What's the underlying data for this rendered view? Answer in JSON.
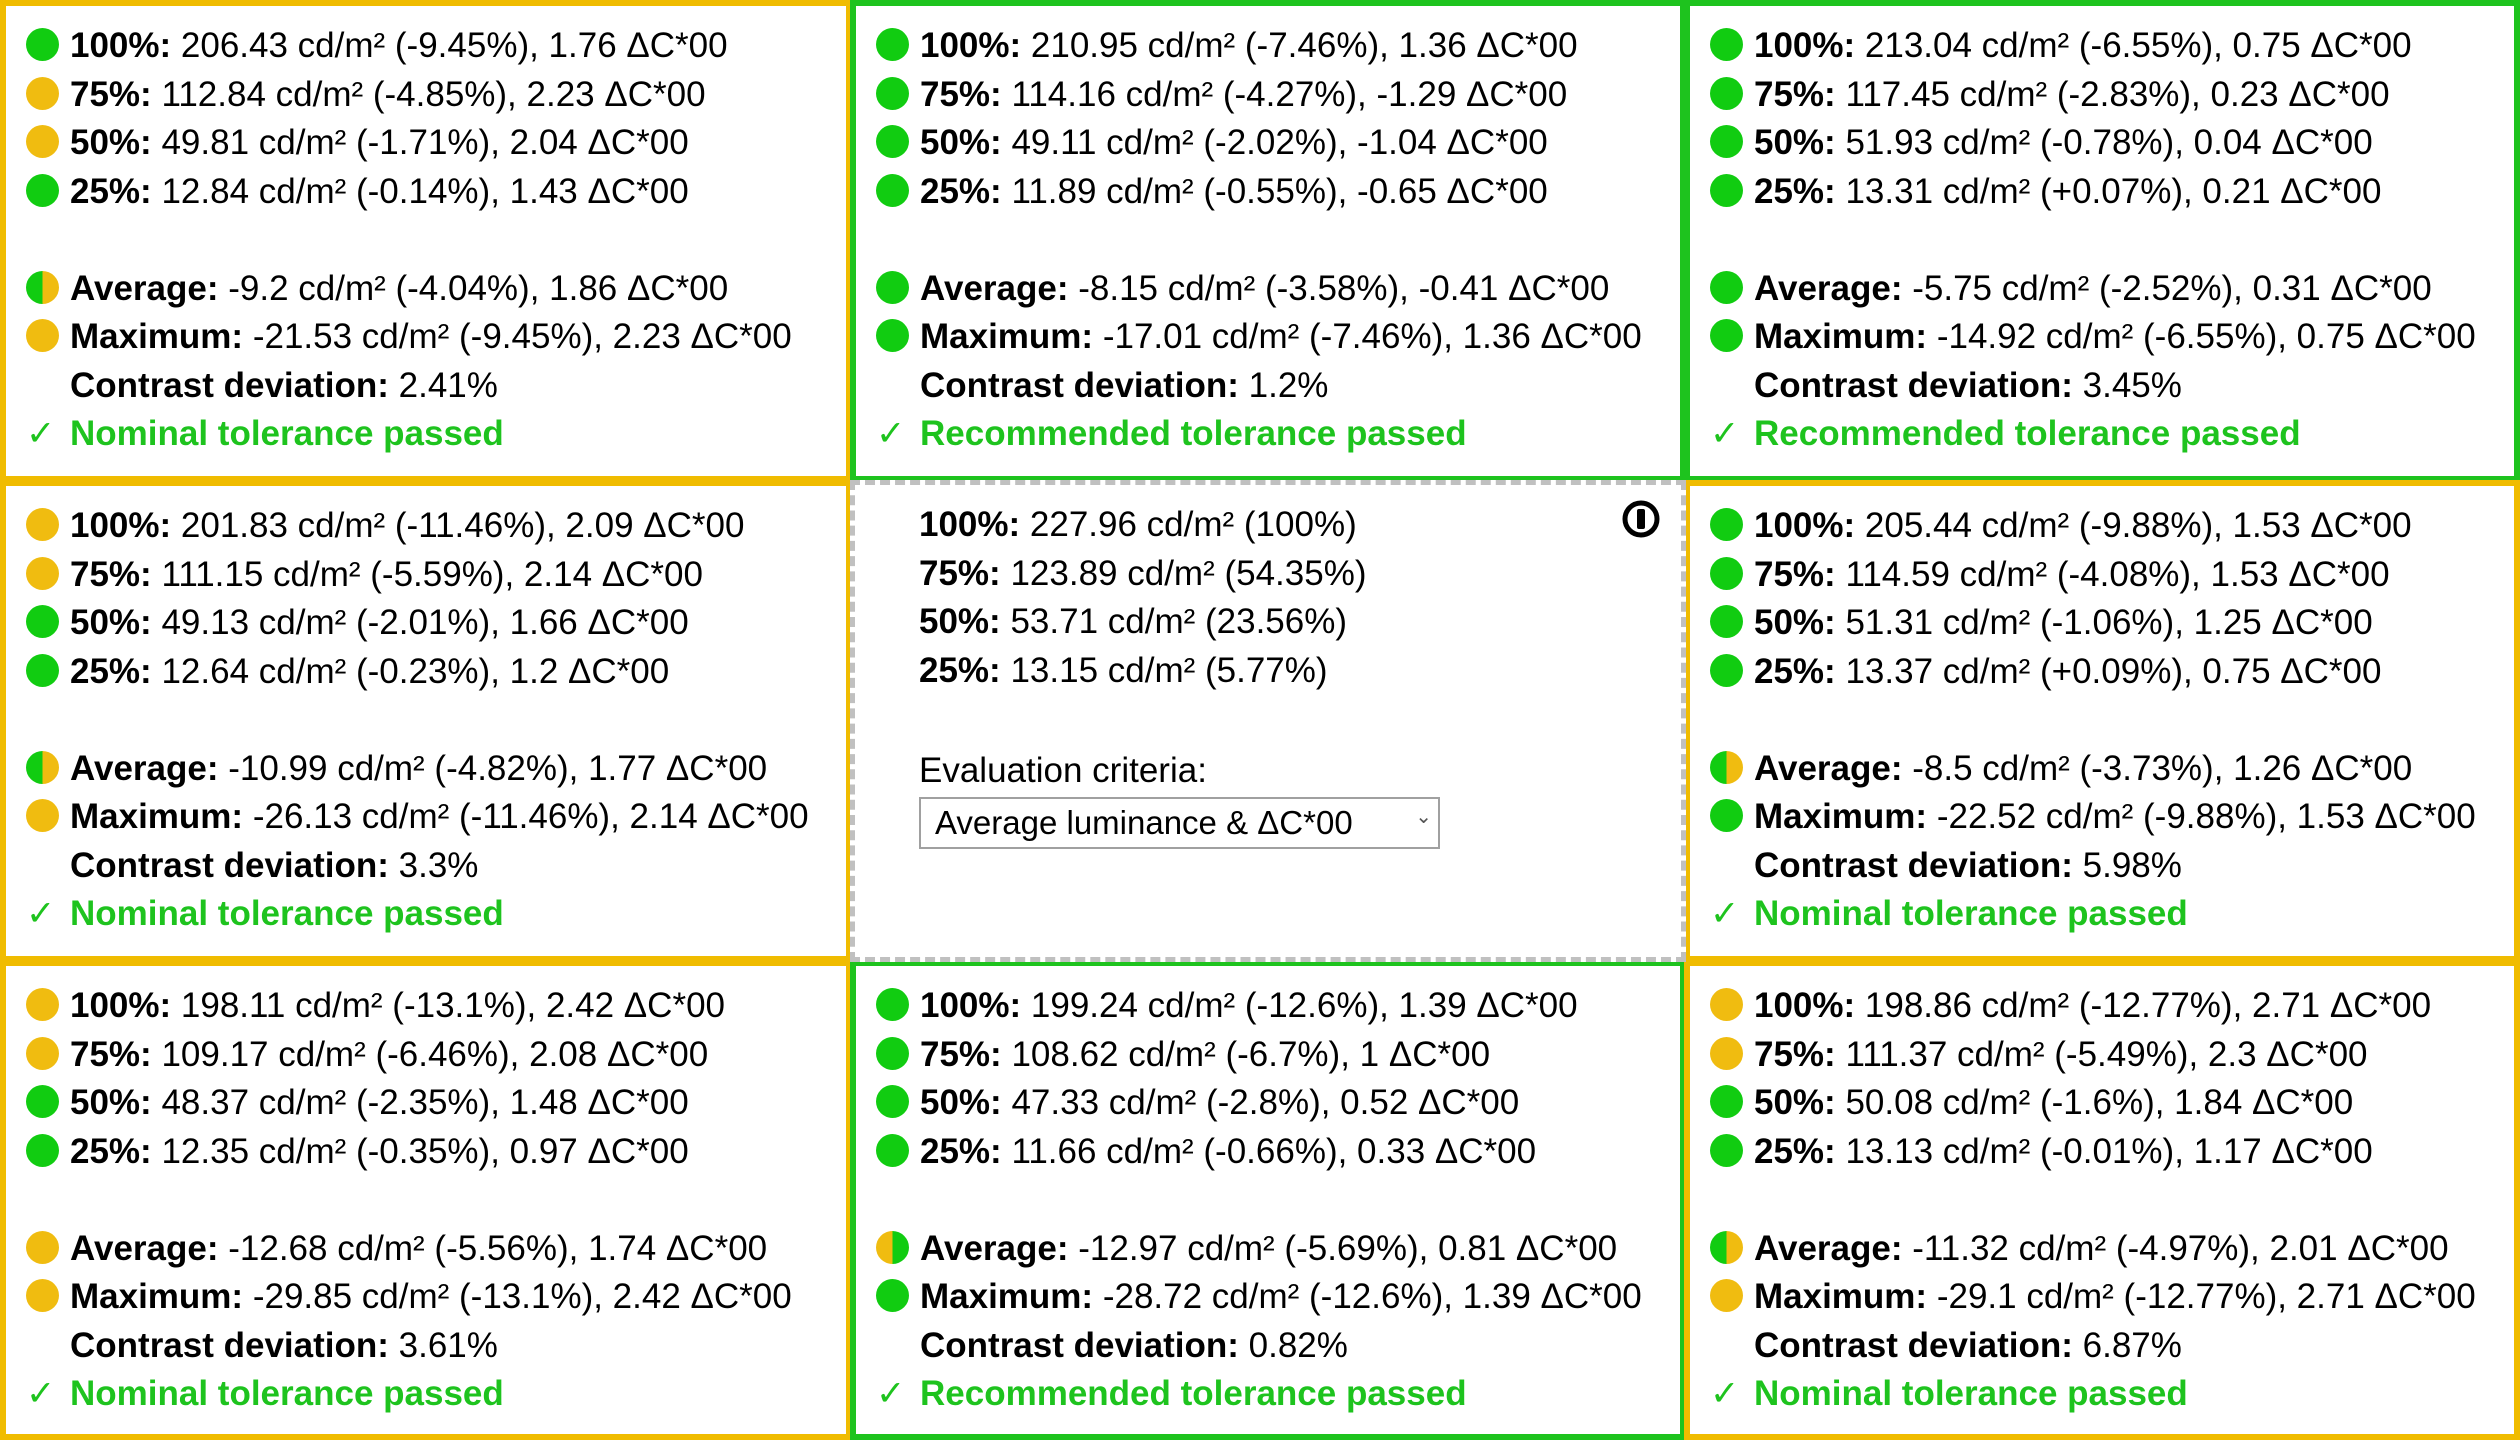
{
  "colors": {
    "green": "#1ec31e",
    "yellow": "#f0bc00",
    "reference_border": "#c0c0c0"
  },
  "cells": [
    {
      "border": "yellow",
      "rows": [
        {
          "status": "green",
          "label": "100%:",
          "value": "206.43 cd/m² (-9.45%), 1.76 ΔC*00"
        },
        {
          "status": "yellow",
          "label": "75%:",
          "value": "112.84 cd/m² (-4.85%), 2.23 ΔC*00"
        },
        {
          "status": "yellow",
          "label": "50%:",
          "value": "49.81 cd/m² (-1.71%), 2.04 ΔC*00"
        },
        {
          "status": "green",
          "label": "25%:",
          "value": "12.84 cd/m² (-0.14%), 1.43 ΔC*00"
        }
      ],
      "average": {
        "status": "half",
        "label": "Average:",
        "value": "-9.2 cd/m² (-4.04%), 1.86 ΔC*00"
      },
      "maximum": {
        "status": "yellow",
        "label": "Maximum:",
        "value": "-21.53 cd/m² (-9.45%), 2.23 ΔC*00"
      },
      "contrast": {
        "label": "Contrast deviation:",
        "value": "2.41%"
      },
      "result": {
        "check": "✓",
        "text": "Nominal tolerance passed"
      }
    },
    {
      "border": "green",
      "rows": [
        {
          "status": "green",
          "label": "100%:",
          "value": "210.95 cd/m² (-7.46%), 1.36 ΔC*00"
        },
        {
          "status": "green",
          "label": "75%:",
          "value": "114.16 cd/m² (-4.27%), -1.29 ΔC*00"
        },
        {
          "status": "green",
          "label": "50%:",
          "value": "49.11 cd/m² (-2.02%), -1.04 ΔC*00"
        },
        {
          "status": "green",
          "label": "25%:",
          "value": "11.89 cd/m² (-0.55%), -0.65 ΔC*00"
        }
      ],
      "average": {
        "status": "green",
        "label": "Average:",
        "value": "-8.15 cd/m² (-3.58%), -0.41 ΔC*00"
      },
      "maximum": {
        "status": "green",
        "label": "Maximum:",
        "value": "-17.01 cd/m² (-7.46%), 1.36 ΔC*00"
      },
      "contrast": {
        "label": "Contrast deviation:",
        "value": "1.2%"
      },
      "result": {
        "check": "✓",
        "text": "Recommended tolerance passed"
      }
    },
    {
      "border": "green",
      "rows": [
        {
          "status": "green",
          "label": "100%:",
          "value": "213.04 cd/m² (-6.55%), 0.75 ΔC*00"
        },
        {
          "status": "green",
          "label": "75%:",
          "value": "117.45 cd/m² (-2.83%), 0.23 ΔC*00"
        },
        {
          "status": "green",
          "label": "50%:",
          "value": "51.93 cd/m² (-0.78%), 0.04 ΔC*00"
        },
        {
          "status": "green",
          "label": "25%:",
          "value": "13.31 cd/m² (+0.07%), 0.21 ΔC*00"
        }
      ],
      "average": {
        "status": "green",
        "label": "Average:",
        "value": "-5.75 cd/m² (-2.52%), 0.31 ΔC*00"
      },
      "maximum": {
        "status": "green",
        "label": "Maximum:",
        "value": "-14.92 cd/m² (-6.55%), 0.75 ΔC*00"
      },
      "contrast": {
        "label": "Contrast deviation:",
        "value": "3.45%"
      },
      "result": {
        "check": "✓",
        "text": "Recommended tolerance passed"
      }
    },
    {
      "border": "yellow",
      "rows": [
        {
          "status": "yellow",
          "label": "100%:",
          "value": "201.83 cd/m² (-11.46%), 2.09 ΔC*00"
        },
        {
          "status": "yellow",
          "label": "75%:",
          "value": "111.15 cd/m² (-5.59%), 2.14 ΔC*00"
        },
        {
          "status": "green",
          "label": "50%:",
          "value": "49.13 cd/m² (-2.01%), 1.66 ΔC*00"
        },
        {
          "status": "green",
          "label": "25%:",
          "value": "12.64 cd/m² (-0.23%), 1.2 ΔC*00"
        }
      ],
      "average": {
        "status": "half",
        "label": "Average:",
        "value": "-10.99 cd/m² (-4.82%), 1.77 ΔC*00"
      },
      "maximum": {
        "status": "yellow",
        "label": "Maximum:",
        "value": "-26.13 cd/m² (-11.46%), 2.14 ΔC*00"
      },
      "contrast": {
        "label": "Contrast deviation:",
        "value": "3.3%"
      },
      "result": {
        "check": "✓",
        "text": "Nominal tolerance passed"
      }
    },
    {
      "border": "yellow",
      "rows": [
        {
          "status": "green",
          "label": "100%:",
          "value": "205.44 cd/m² (-9.88%), 1.53 ΔC*00"
        },
        {
          "status": "green",
          "label": "75%:",
          "value": "114.59 cd/m² (-4.08%), 1.53 ΔC*00"
        },
        {
          "status": "green",
          "label": "50%:",
          "value": "51.31 cd/m² (-1.06%), 1.25 ΔC*00"
        },
        {
          "status": "green",
          "label": "25%:",
          "value": "13.37 cd/m² (+0.09%), 0.75 ΔC*00"
        }
      ],
      "average": {
        "status": "half",
        "label": "Average:",
        "value": "-8.5 cd/m² (-3.73%), 1.26 ΔC*00"
      },
      "maximum": {
        "status": "green",
        "label": "Maximum:",
        "value": "-22.52 cd/m² (-9.88%), 1.53 ΔC*00"
      },
      "contrast": {
        "label": "Contrast deviation:",
        "value": "5.98%"
      },
      "result": {
        "check": "✓",
        "text": "Nominal tolerance passed"
      }
    },
    {
      "border": "yellow",
      "rows": [
        {
          "status": "yellow",
          "label": "100%:",
          "value": "198.11 cd/m² (-13.1%), 2.42 ΔC*00"
        },
        {
          "status": "yellow",
          "label": "75%:",
          "value": "109.17 cd/m² (-6.46%), 2.08 ΔC*00"
        },
        {
          "status": "green",
          "label": "50%:",
          "value": "48.37 cd/m² (-2.35%), 1.48 ΔC*00"
        },
        {
          "status": "green",
          "label": "25%:",
          "value": "12.35 cd/m² (-0.35%), 0.97 ΔC*00"
        }
      ],
      "average": {
        "status": "yellow",
        "label": "Average:",
        "value": "-12.68 cd/m² (-5.56%), 1.74 ΔC*00"
      },
      "maximum": {
        "status": "yellow",
        "label": "Maximum:",
        "value": "-29.85 cd/m² (-13.1%), 2.42 ΔC*00"
      },
      "contrast": {
        "label": "Contrast deviation:",
        "value": "3.61%"
      },
      "result": {
        "check": "✓",
        "text": "Nominal tolerance passed"
      }
    },
    {
      "border": "green",
      "rows": [
        {
          "status": "green",
          "label": "100%:",
          "value": "199.24 cd/m² (-12.6%), 1.39 ΔC*00"
        },
        {
          "status": "green",
          "label": "75%:",
          "value": "108.62 cd/m² (-6.7%), 1 ΔC*00"
        },
        {
          "status": "green",
          "label": "50%:",
          "value": "47.33 cd/m² (-2.8%), 0.52 ΔC*00"
        },
        {
          "status": "green",
          "label": "25%:",
          "value": "11.66 cd/m² (-0.66%), 0.33 ΔC*00"
        }
      ],
      "average": {
        "status": "half-yellow-first",
        "label": "Average:",
        "value": "-12.97 cd/m² (-5.69%), 0.81 ΔC*00"
      },
      "maximum": {
        "status": "green",
        "label": "Maximum:",
        "value": "-28.72 cd/m² (-12.6%), 1.39 ΔC*00"
      },
      "contrast": {
        "label": "Contrast deviation:",
        "value": "0.82%"
      },
      "result": {
        "check": "✓",
        "text": "Recommended tolerance passed"
      }
    },
    {
      "border": "yellow",
      "rows": [
        {
          "status": "yellow",
          "label": "100%:",
          "value": "198.86 cd/m² (-12.77%), 2.71 ΔC*00"
        },
        {
          "status": "yellow",
          "label": "75%:",
          "value": "111.37 cd/m² (-5.49%), 2.3 ΔC*00"
        },
        {
          "status": "green",
          "label": "50%:",
          "value": "50.08 cd/m² (-1.6%), 1.84 ΔC*00"
        },
        {
          "status": "green",
          "label": "25%:",
          "value": "13.13 cd/m² (-0.01%), 1.17 ΔC*00"
        }
      ],
      "average": {
        "status": "half",
        "label": "Average:",
        "value": "-11.32 cd/m² (-4.97%), 2.01 ΔC*00"
      },
      "maximum": {
        "status": "yellow",
        "label": "Maximum:",
        "value": "-29.1 cd/m² (-12.77%), 2.71 ΔC*00"
      },
      "contrast": {
        "label": "Contrast deviation:",
        "value": "6.87%"
      },
      "result": {
        "check": "✓",
        "text": "Nominal tolerance passed"
      }
    }
  ],
  "reference": {
    "rows": [
      {
        "label": "100%:",
        "value": "227.96 cd/m² (100%)"
      },
      {
        "label": "75%:",
        "value": "123.89 cd/m² (54.35%)"
      },
      {
        "label": "50%:",
        "value": "53.71 cd/m² (23.56%)"
      },
      {
        "label": "25%:",
        "value": "13.15 cd/m² (5.77%)"
      }
    ],
    "criteria_label": "Evaluation criteria:",
    "criteria_value": "Average luminance & ΔC*00",
    "icon": "reference-marker-icon"
  }
}
